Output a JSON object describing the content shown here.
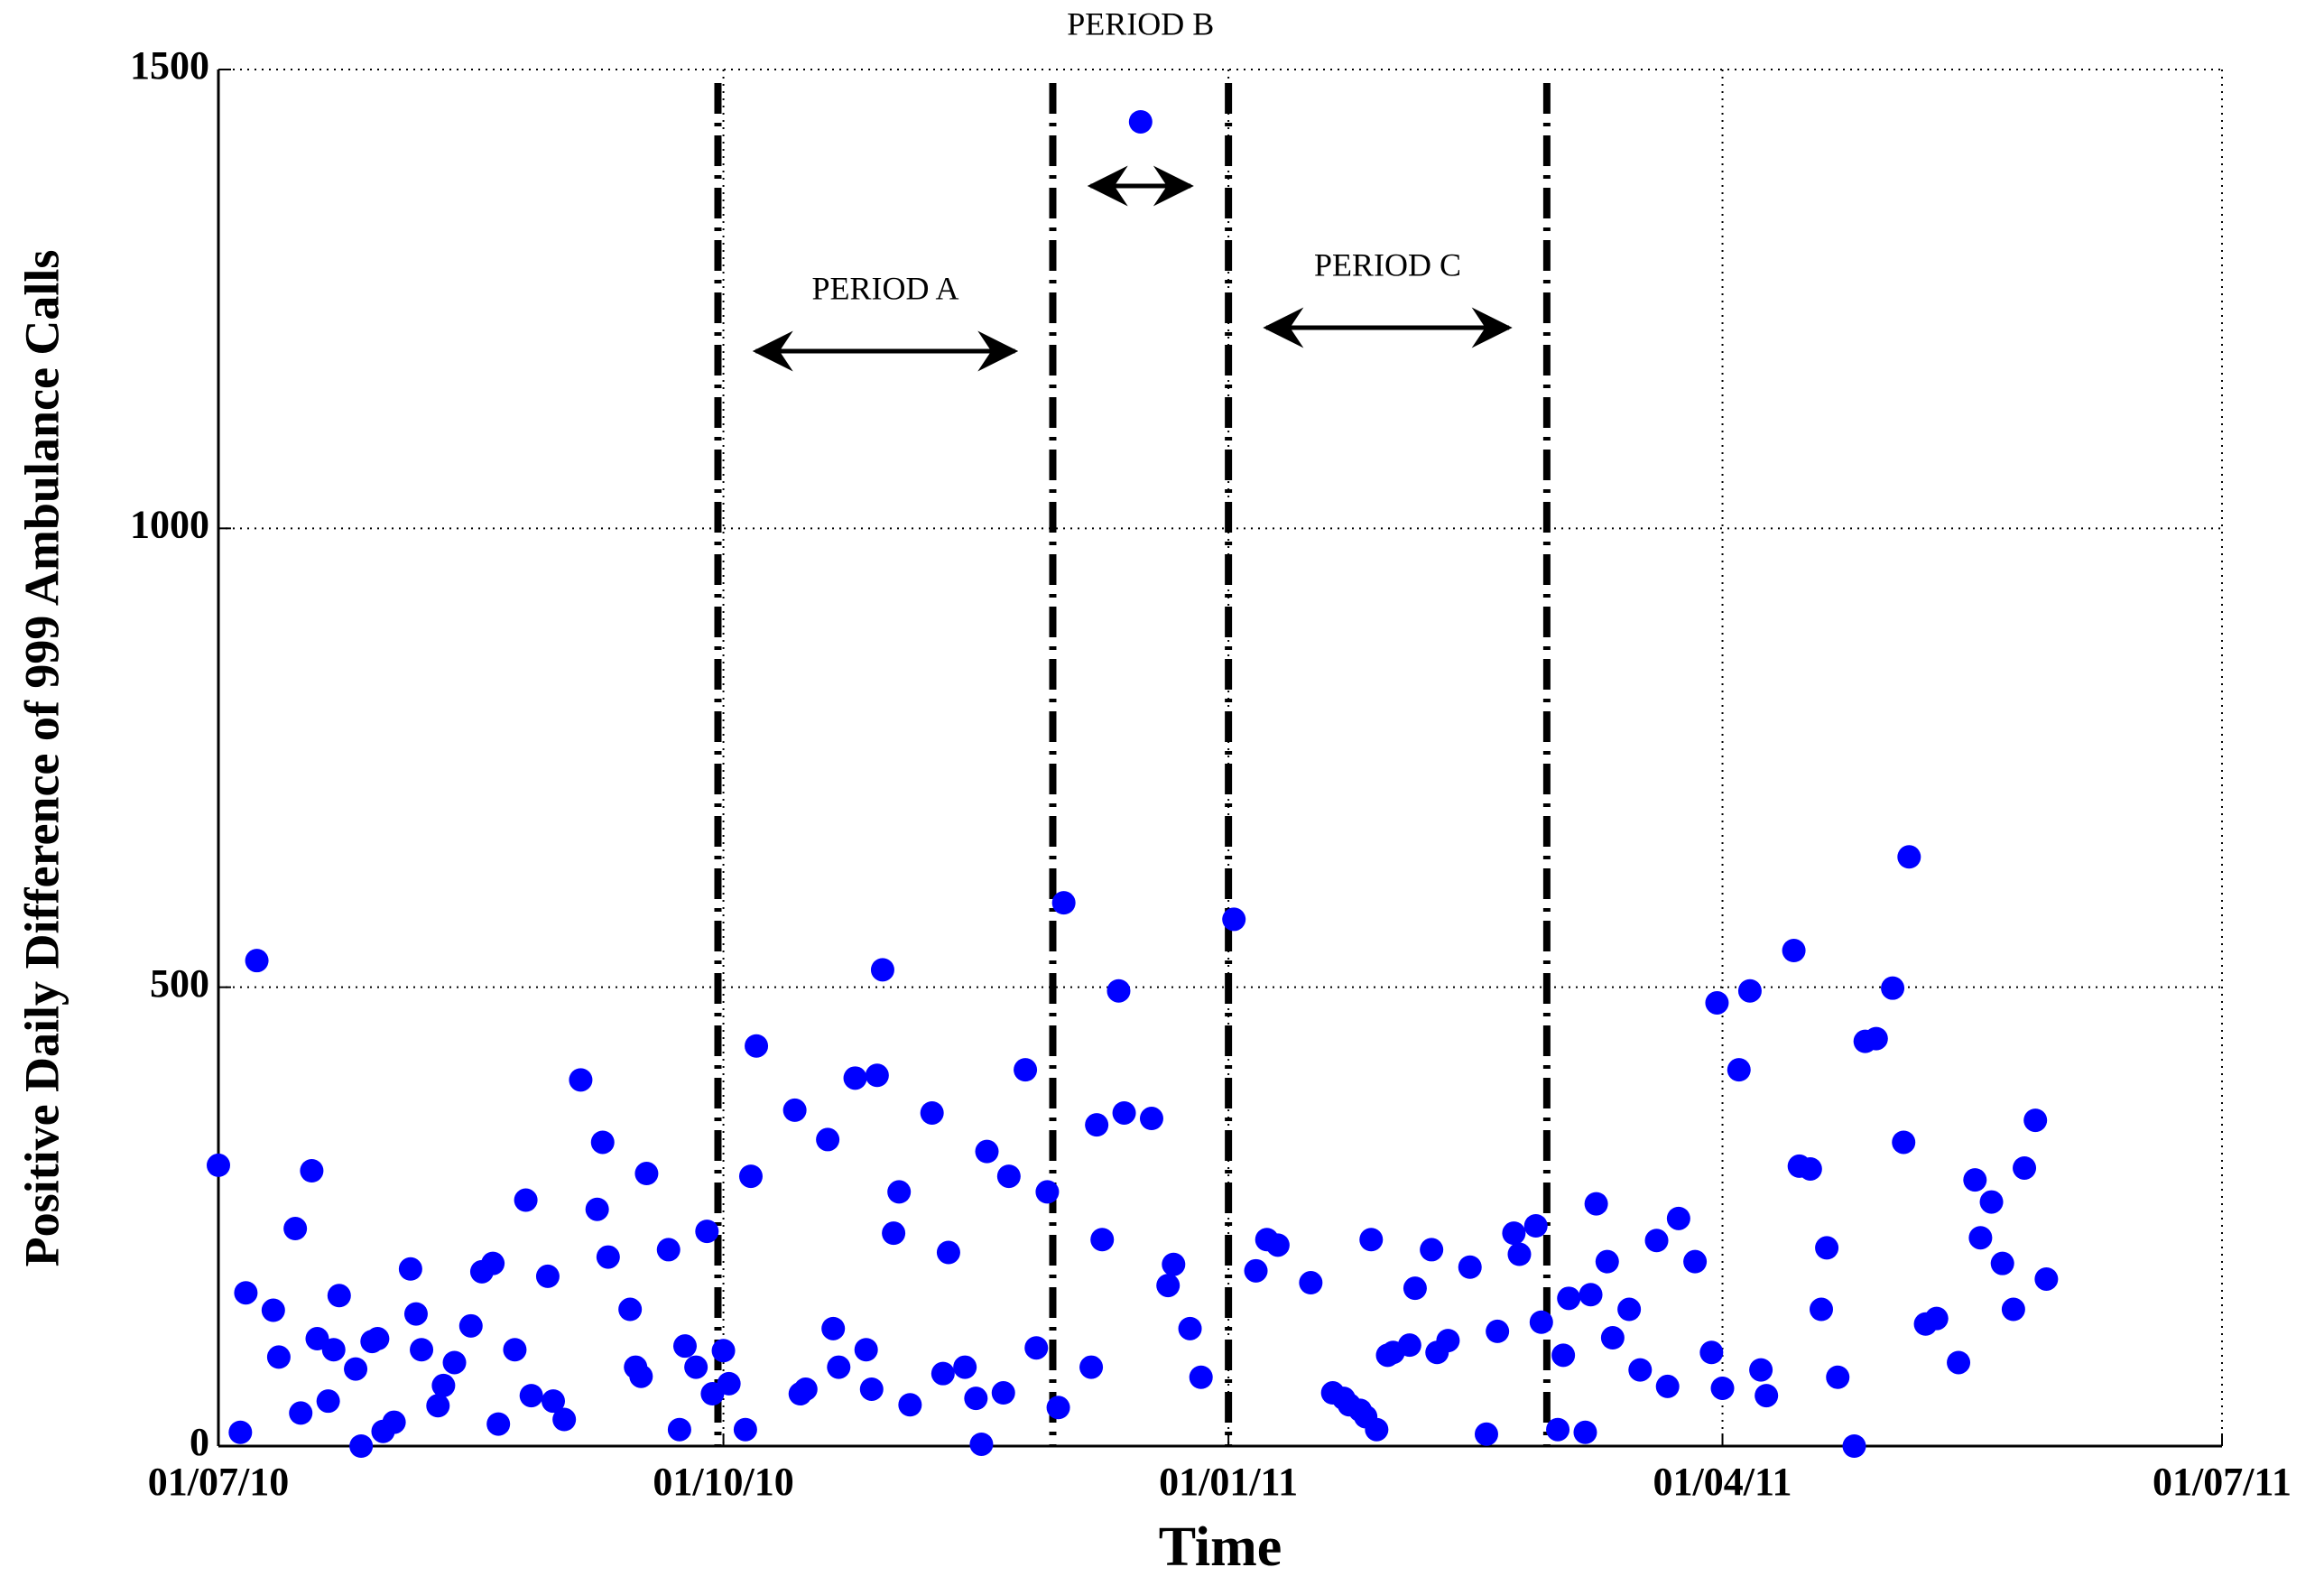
{
  "chart_data": {
    "type": "scatter",
    "xlabel": "Time",
    "ylabel": "Positive Daily Difference of 999 Ambulance Calls",
    "color": "#0000ff",
    "grid": true,
    "xlim": [
      "2010-07-01",
      "2011-07-01"
    ],
    "xticks": [
      {
        "value": "2010-07-01",
        "label": "01/07/10"
      },
      {
        "value": "2010-10-01",
        "label": "01/10/10"
      },
      {
        "value": "2011-01-01",
        "label": "01/01/11"
      },
      {
        "value": "2011-04-01",
        "label": "01/04/11"
      },
      {
        "value": "2011-07-01",
        "label": "01/07/11"
      }
    ],
    "ylim": [
      0,
      1500
    ],
    "yticks": [
      0,
      500,
      1000,
      1500
    ],
    "periods": [
      {
        "label": "PERIOD A",
        "start": "2010-09-30",
        "end": "2010-11-30"
      },
      {
        "label": "PERIOD B",
        "start": "2010-11-30",
        "end": "2011-01-01"
      },
      {
        "label": "PERIOD C",
        "start": "2011-01-01",
        "end": "2011-02-28"
      }
    ],
    "x": [
      "2010-07-01",
      "2010-07-05",
      "2010-07-06",
      "2010-07-08",
      "2010-07-11",
      "2010-07-12",
      "2010-07-15",
      "2010-07-16",
      "2010-07-18",
      "2010-07-19",
      "2010-07-21",
      "2010-07-22",
      "2010-07-23",
      "2010-07-26",
      "2010-07-27",
      "2010-07-29",
      "2010-07-30",
      "2010-07-31",
      "2010-08-02",
      "2010-08-05",
      "2010-08-06",
      "2010-08-07",
      "2010-08-10",
      "2010-08-11",
      "2010-08-13",
      "2010-08-16",
      "2010-08-18",
      "2010-08-20",
      "2010-08-21",
      "2010-08-24",
      "2010-08-26",
      "2010-08-27",
      "2010-08-30",
      "2010-08-31",
      "2010-09-02",
      "2010-09-05",
      "2010-09-08",
      "2010-09-09",
      "2010-09-10",
      "2010-09-14",
      "2010-09-15",
      "2010-09-16",
      "2010-09-17",
      "2010-09-21",
      "2010-09-23",
      "2010-09-24",
      "2010-09-26",
      "2010-09-28",
      "2010-09-29",
      "2010-10-01",
      "2010-10-02",
      "2010-10-05",
      "2010-10-06",
      "2010-10-07",
      "2010-10-14",
      "2010-10-15",
      "2010-10-16",
      "2010-10-20",
      "2010-10-21",
      "2010-10-22",
      "2010-10-25",
      "2010-10-27",
      "2010-10-28",
      "2010-10-29",
      "2010-10-30",
      "2010-11-01",
      "2010-11-02",
      "2010-11-04",
      "2010-11-08",
      "2010-11-10",
      "2010-11-11",
      "2010-11-14",
      "2010-11-16",
      "2010-11-17",
      "2010-11-18",
      "2010-11-21",
      "2010-11-22",
      "2010-11-25",
      "2010-11-27",
      "2010-11-29",
      "2010-12-01",
      "2010-12-02",
      "2010-12-07",
      "2010-12-08",
      "2010-12-09",
      "2010-12-12",
      "2010-12-13",
      "2010-12-16",
      "2010-12-18",
      "2010-12-21",
      "2010-12-22",
      "2010-12-25",
      "2010-12-27",
      "2011-01-02",
      "2011-01-06",
      "2011-01-08",
      "2011-01-10",
      "2011-01-16",
      "2011-01-20",
      "2011-01-22",
      "2011-01-23",
      "2011-01-25",
      "2011-01-26",
      "2011-01-27",
      "2011-01-28",
      "2011-01-30",
      "2011-01-31",
      "2011-02-03",
      "2011-02-04",
      "2011-02-07",
      "2011-02-08",
      "2011-02-10",
      "2011-02-14",
      "2011-02-17",
      "2011-02-19",
      "2011-02-22",
      "2011-02-23",
      "2011-02-26",
      "2011-02-27",
      "2011-03-02",
      "2011-03-03",
      "2011-03-04",
      "2011-03-07",
      "2011-03-08",
      "2011-03-09",
      "2011-03-11",
      "2011-03-12",
      "2011-03-15",
      "2011-03-17",
      "2011-03-20",
      "2011-03-22",
      "2011-03-24",
      "2011-03-27",
      "2011-03-30",
      "2011-03-31",
      "2011-04-01",
      "2011-04-04",
      "2011-04-06",
      "2011-04-08",
      "2011-04-09",
      "2011-04-14",
      "2011-04-15",
      "2011-04-17",
      "2011-04-19",
      "2011-04-20",
      "2011-04-22",
      "2011-04-25",
      "2011-04-27",
      "2011-04-29",
      "2011-05-02",
      "2011-05-04",
      "2011-05-05",
      "2011-05-08",
      "2011-05-10",
      "2011-05-14",
      "2011-05-17",
      "2011-05-18",
      "2011-05-20",
      "2011-05-22",
      "2011-05-24",
      "2011-05-26",
      "2011-05-28",
      "2011-05-30"
    ],
    "values": [
      306,
      15,
      167,
      529,
      148,
      97,
      237,
      36,
      300,
      117,
      49,
      105,
      164,
      84,
      0,
      114,
      117,
      16,
      26,
      193,
      144,
      105,
      44,
      66,
      91,
      131,
      190,
      199,
      24,
      105,
      268,
      55,
      185,
      49,
      29,
      399,
      258,
      331,
      206,
      149,
      86,
      76,
      297,
      214,
      18,
      109,
      86,
      234,
      57,
      104,
      68,
      18,
      294,
      436,
      366,
      57,
      62,
      334,
      128,
      86,
      401,
      105,
      62,
      404,
      519,
      232,
      277,
      45,
      363,
      79,
      211,
      86,
      52,
      2,
      321,
      58,
      294,
      410,
      107,
      277,
      42,
      592,
      86,
      350,
      225,
      496,
      363,
      1443,
      357,
      175,
      198,
      128,
      75,
      574,
      191,
      225,
      219,
      178,
      58,
      52,
      45,
      39,
      32,
      225,
      18,
      99,
      102,
      110,
      172,
      214,
      102,
      115,
      195,
      13,
      125,
      232,
      209,
      240,
      135,
      18,
      99,
      161,
      15,
      165,
      264,
      201,
      118,
      149,
      83,
      224,
      65,
      248,
      201,
      102,
      483,
      63,
      410,
      496,
      83,
      55,
      540,
      305,
      302,
      149,
      216,
      75,
      0,
      441,
      444,
      499,
      331,
      642,
      133,
      139,
      91,
      290,
      227,
      266,
      199,
      149,
      303,
      355,
      182
    ]
  }
}
